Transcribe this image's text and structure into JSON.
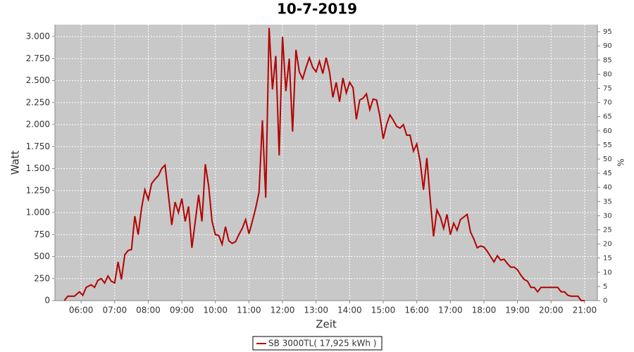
{
  "chart_data": {
    "type": "line",
    "title": "10-7-2019",
    "x_label": "Zeit",
    "y_label": "Watt",
    "y2_label": "%",
    "x": [
      5.5,
      5.6,
      5.8,
      5.95,
      6.05,
      6.15,
      6.3,
      6.4,
      6.5,
      6.6,
      6.7,
      6.8,
      6.9,
      7.0,
      7.1,
      7.2,
      7.3,
      7.4,
      7.5,
      7.6,
      7.7,
      7.8,
      7.9,
      8.0,
      8.1,
      8.2,
      8.3,
      8.4,
      8.5,
      8.6,
      8.7,
      8.8,
      8.9,
      9.0,
      9.1,
      9.2,
      9.3,
      9.4,
      9.5,
      9.6,
      9.7,
      9.8,
      9.9,
      10.0,
      10.1,
      10.2,
      10.3,
      10.4,
      10.5,
      10.6,
      10.7,
      10.8,
      10.9,
      11.0,
      11.1,
      11.2,
      11.3,
      11.4,
      11.5,
      11.6,
      11.7,
      11.8,
      11.9,
      12.0,
      12.1,
      12.2,
      12.3,
      12.4,
      12.5,
      12.6,
      12.7,
      12.8,
      12.9,
      13.0,
      13.1,
      13.2,
      13.3,
      13.4,
      13.5,
      13.6,
      13.7,
      13.8,
      13.9,
      14.0,
      14.1,
      14.2,
      14.3,
      14.4,
      14.5,
      14.6,
      14.7,
      14.8,
      14.9,
      15.0,
      15.1,
      15.2,
      15.3,
      15.4,
      15.5,
      15.6,
      15.7,
      15.8,
      15.9,
      16.0,
      16.1,
      16.2,
      16.3,
      16.4,
      16.5,
      16.6,
      16.7,
      16.8,
      16.9,
      17.0,
      17.1,
      17.2,
      17.3,
      17.4,
      17.5,
      17.6,
      17.7,
      17.8,
      17.9,
      18.0,
      18.1,
      18.2,
      18.3,
      18.4,
      18.5,
      18.6,
      18.7,
      18.8,
      18.9,
      19.0,
      19.1,
      19.2,
      19.3,
      19.4,
      19.5,
      19.6,
      19.7,
      19.8,
      19.9,
      20.0,
      20.1,
      20.2,
      20.3,
      20.4,
      20.5,
      20.6,
      20.7,
      20.8,
      20.9,
      21.0
    ],
    "series": [
      {
        "name": "SB 3000TL( 17,925 kWh )",
        "color": "#b40000",
        "values": [
          0,
          50,
          50,
          100,
          60,
          150,
          180,
          150,
          230,
          250,
          200,
          280,
          220,
          200,
          440,
          240,
          520,
          570,
          580,
          960,
          750,
          1050,
          1260,
          1150,
          1330,
          1380,
          1420,
          1500,
          1540,
          1200,
          860,
          1120,
          1000,
          1160,
          900,
          1070,
          600,
          900,
          1200,
          900,
          1550,
          1300,
          900,
          750,
          740,
          640,
          840,
          680,
          650,
          670,
          750,
          820,
          920,
          760,
          900,
          1050,
          1230,
          2050,
          1170,
          3100,
          2400,
          2780,
          1650,
          3000,
          2380,
          2750,
          1920,
          2850,
          2600,
          2520,
          2650,
          2760,
          2650,
          2600,
          2720,
          2580,
          2760,
          2600,
          2310,
          2480,
          2260,
          2530,
          2360,
          2480,
          2420,
          2060,
          2280,
          2300,
          2350,
          2170,
          2290,
          2280,
          2100,
          1840,
          2000,
          2110,
          2050,
          1980,
          1960,
          2000,
          1880,
          1880,
          1700,
          1780,
          1580,
          1260,
          1620,
          1150,
          730,
          1030,
          950,
          820,
          980,
          750,
          880,
          800,
          920,
          950,
          980,
          780,
          700,
          600,
          620,
          610,
          560,
          500,
          440,
          510,
          460,
          470,
          420,
          380,
          380,
          350,
          290,
          240,
          220,
          150,
          150,
          100,
          150,
          150,
          150,
          150,
          150,
          150,
          100,
          100,
          60,
          50,
          50,
          50,
          0,
          0
        ]
      }
    ],
    "xlim": [
      5.22,
      21.38
    ],
    "ylim": [
      0,
      3136
    ],
    "y2lim": [
      0,
      97.5
    ],
    "xticks": [
      {
        "value": 6,
        "label": "06:00"
      },
      {
        "value": 7,
        "label": "07:00"
      },
      {
        "value": 8,
        "label": "08:00"
      },
      {
        "value": 9,
        "label": "09:00"
      },
      {
        "value": 10,
        "label": "10:00"
      },
      {
        "value": 11,
        "label": "11:00"
      },
      {
        "value": 12,
        "label": "12:00"
      },
      {
        "value": 13,
        "label": "13:00"
      },
      {
        "value": 14,
        "label": "14:00"
      },
      {
        "value": 15,
        "label": "15:00"
      },
      {
        "value": 16,
        "label": "16:00"
      },
      {
        "value": 17,
        "label": "17:00"
      },
      {
        "value": 18,
        "label": "18:00"
      },
      {
        "value": 19,
        "label": "19:00"
      },
      {
        "value": 20,
        "label": "20:00"
      },
      {
        "value": 21,
        "label": "21:00"
      }
    ],
    "yticks": [
      0,
      250,
      500,
      750,
      {
        "value": 1000,
        "label": "1.000"
      },
      {
        "value": 1250,
        "label": "1.250"
      },
      {
        "value": 1500,
        "label": "1.500"
      },
      {
        "value": 1750,
        "label": "1.750"
      },
      {
        "value": 2000,
        "label": "2.000"
      },
      {
        "value": 2250,
        "label": "2.250"
      },
      {
        "value": 2500,
        "label": "2.500"
      },
      {
        "value": 2750,
        "label": "2.750"
      },
      {
        "value": 3000,
        "label": "3.000"
      }
    ],
    "y2ticks": [
      0,
      5,
      10,
      15,
      20,
      25,
      30,
      35,
      40,
      45,
      50,
      55,
      60,
      65,
      70,
      75,
      80,
      85,
      90,
      95
    ],
    "grid": true
  }
}
